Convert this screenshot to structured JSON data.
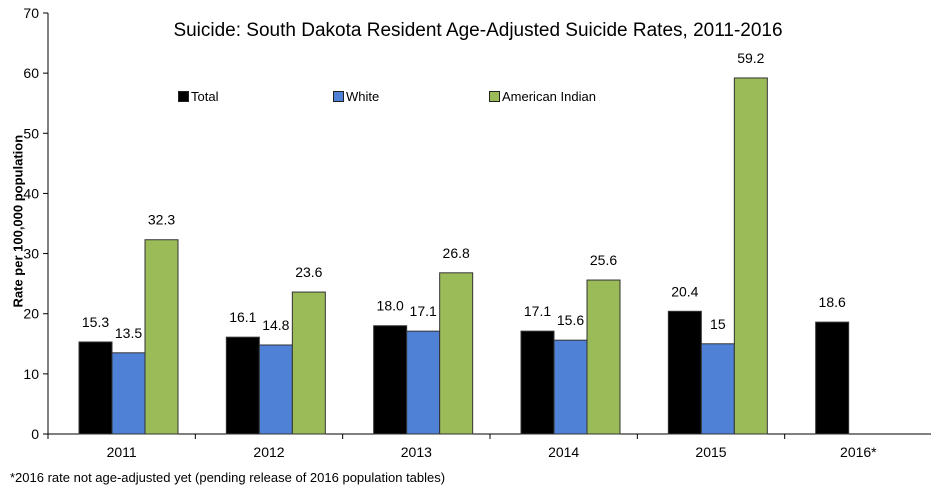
{
  "chart_data": {
    "type": "bar",
    "title": "Suicide:  South Dakota Resident Age-Adjusted Suicide Rates, 2011-2016",
    "xlabel": "",
    "ylabel": "Rate per 100,000 population",
    "ylim": [
      0,
      70
    ],
    "yticks": [
      "0",
      "10",
      "20",
      "30",
      "40",
      "50",
      "60",
      "70"
    ],
    "categories": [
      "2011",
      "2012",
      "2013",
      "2014",
      "2015",
      "2016*"
    ],
    "grid": false,
    "legend_position": "top",
    "series": [
      {
        "name": "Total",
        "color": "#000000",
        "values": [
          15.3,
          16.1,
          18.0,
          17.1,
          20.4,
          18.6
        ],
        "labels": [
          "15.3",
          "16.1",
          "18.0",
          "17.1",
          "20.4",
          "18.6"
        ]
      },
      {
        "name": "White",
        "color": "#4F81D6",
        "values": [
          13.5,
          14.8,
          17.1,
          15.6,
          15,
          null
        ],
        "labels": [
          "13.5",
          "14.8",
          "17.1",
          "15.6",
          "15",
          ""
        ]
      },
      {
        "name": "American Indian",
        "color": "#9BBB59",
        "values": [
          32.3,
          23.6,
          26.8,
          25.6,
          59.2,
          null
        ],
        "labels": [
          "32.3",
          "23.6",
          "26.8",
          "25.6",
          "59.2",
          ""
        ]
      }
    ]
  },
  "footnote": "*2016 rate not age-adjusted yet (pending release of 2016 population tables)"
}
